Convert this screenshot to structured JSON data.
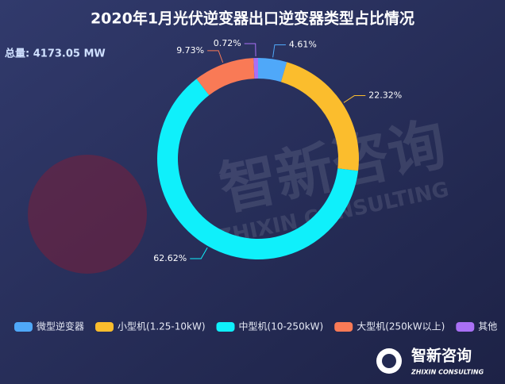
{
  "chart_data": {
    "type": "pie",
    "donut": true,
    "title": "2020年1月光伏逆变器出口逆变器类型占比情况",
    "annotation": "总量: 4173.05 MW",
    "categories": [
      "微型逆变器",
      "小型机(1.25-10kW)",
      "中型机(10-250kW)",
      "大型机(250kW以上)",
      "其他"
    ],
    "values": [
      4.61,
      22.32,
      62.62,
      9.73,
      0.72
    ],
    "value_labels": [
      "4.61%",
      "22.32%",
      "62.62%",
      "9.73%",
      "0.72%"
    ],
    "colors": [
      "#4fa8f9",
      "#fbbd2d",
      "#0ff0fb",
      "#f97a56",
      "#a970f5"
    ],
    "legend": "bottom",
    "watermark": {
      "text": "智新咨询",
      "subtext": "ZHIXIN CONSULTING"
    }
  }
}
